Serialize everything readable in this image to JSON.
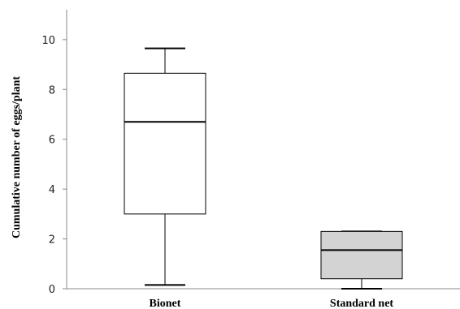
{
  "chart_data": {
    "type": "boxplot",
    "ylabel": "Cumulative number of eggs/plant",
    "xlabel": "",
    "ylim": [
      0,
      11.2
    ],
    "yticks": [
      0,
      2,
      4,
      6,
      8,
      10
    ],
    "yticklabels": [
      "0",
      "2",
      "4",
      "6",
      "8",
      "10"
    ],
    "grid": false,
    "categories": [
      "Bionet",
      "Standard net"
    ],
    "boxes": [
      {
        "category": "Bionet",
        "min": 0.15,
        "q1": 3.0,
        "median": 6.7,
        "q3": 8.65,
        "max": 9.65,
        "fill": "#ffffff"
      },
      {
        "category": "Standard net",
        "min": 0.0,
        "q1": 0.4,
        "median": 1.55,
        "q3": 2.3,
        "max": 2.3,
        "fill": "#d3d3d3"
      }
    ],
    "colors": {
      "axis": "#888888",
      "stroke": "#000000"
    }
  }
}
